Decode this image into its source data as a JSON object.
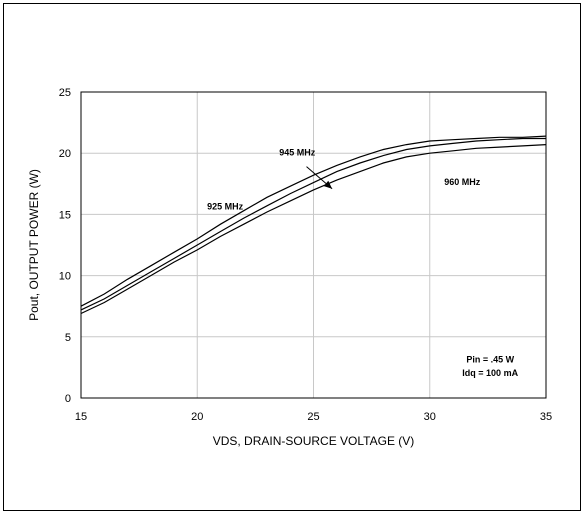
{
  "chart_data": {
    "type": "line",
    "title": "",
    "xlabel": "VDS, DRAIN-SOURCE VOLTAGE (V)",
    "ylabel": "Pout, OUTPUT POWER (W)",
    "xlim": [
      15,
      35
    ],
    "ylim": [
      0,
      25
    ],
    "xticks": [
      "15",
      "20",
      "25",
      "30",
      "35"
    ],
    "yticks": [
      "0",
      "5",
      "10",
      "15",
      "20",
      "25"
    ],
    "grid": true,
    "x": [
      15,
      16,
      17,
      18,
      19,
      20,
      21,
      22,
      23,
      24,
      25,
      26,
      27,
      28,
      29,
      30,
      31,
      32,
      33,
      34,
      35
    ],
    "series": [
      {
        "name": "925 MHz",
        "values": [
          7.5,
          8.5,
          9.7,
          10.8,
          11.9,
          13.0,
          14.2,
          15.3,
          16.4,
          17.3,
          18.2,
          19.0,
          19.7,
          20.3,
          20.7,
          21.0,
          21.1,
          21.2,
          21.3,
          21.3,
          21.4
        ]
      },
      {
        "name": "945 MHz",
        "values": [
          7.2,
          8.1,
          9.2,
          10.3,
          11.4,
          12.5,
          13.6,
          14.7,
          15.7,
          16.7,
          17.6,
          18.5,
          19.2,
          19.8,
          20.3,
          20.6,
          20.8,
          21.0,
          21.1,
          21.2,
          21.2
        ]
      },
      {
        "name": "960 MHz",
        "values": [
          6.9,
          7.8,
          8.9,
          10.0,
          11.1,
          12.1,
          13.2,
          14.2,
          15.2,
          16.1,
          17.0,
          17.8,
          18.5,
          19.2,
          19.7,
          20.0,
          20.2,
          20.4,
          20.5,
          20.6,
          20.7
        ]
      }
    ],
    "annotations": {
      "label_925": "925 MHz",
      "label_945": "945 MHz",
      "label_960": "960 MHz",
      "pin": "Pin = .45 W",
      "idq": "Idq = 100 mA"
    },
    "colors": {
      "line": "#000000",
      "grid": "#c8c8c8",
      "axis": "#000000"
    }
  }
}
